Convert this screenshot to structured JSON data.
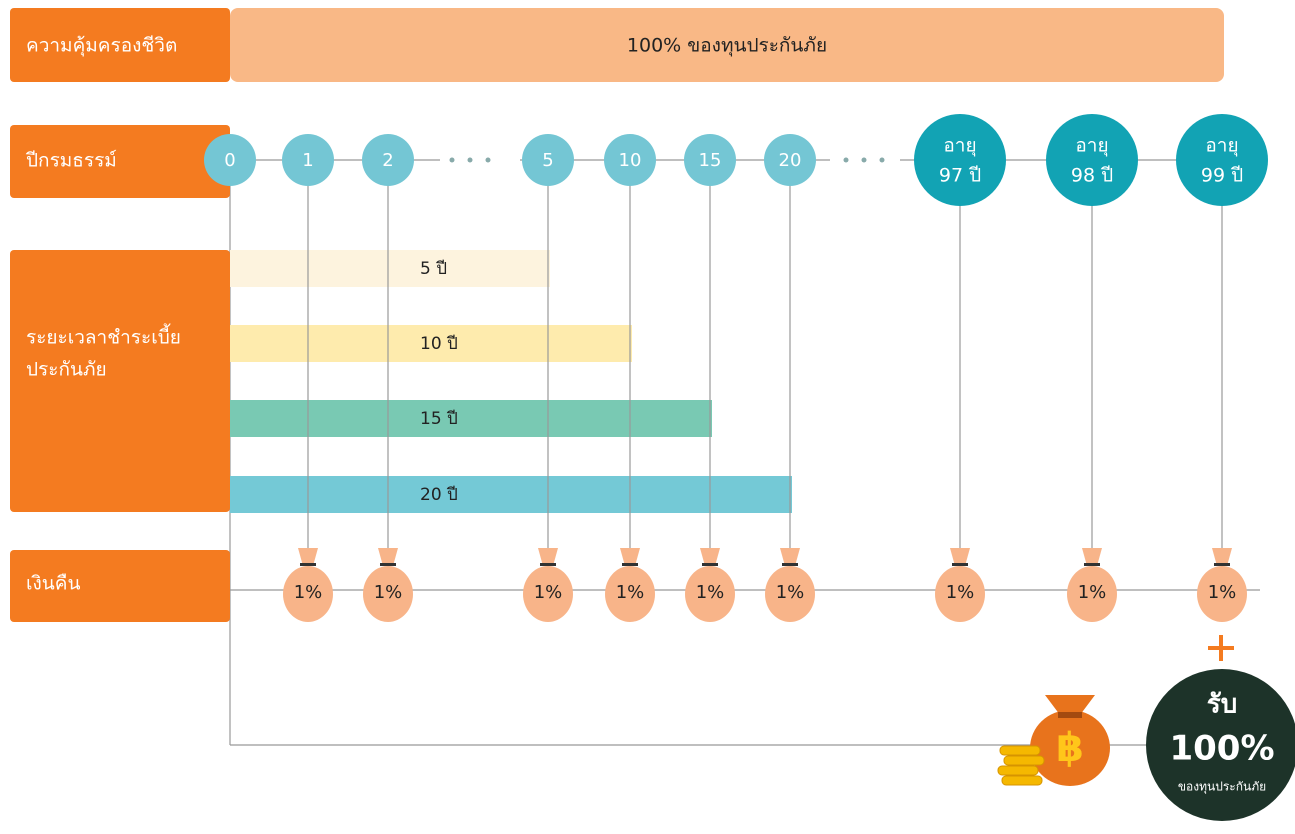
{
  "coverage": {
    "label": "ความคุ้มครองชีวิต",
    "value": "100% ของทุนประกันภัย"
  },
  "policy_years": {
    "label": "ปีกรมธรรม์",
    "points": [
      "0",
      "1",
      "2",
      "5",
      "10",
      "15",
      "20"
    ],
    "ages": [
      {
        "line1": "อายุ",
        "line2": "97 ปี"
      },
      {
        "line1": "อายุ",
        "line2": "98 ปี"
      },
      {
        "line1": "อายุ",
        "line2": "99 ปี"
      }
    ]
  },
  "payment_period": {
    "label_lines": [
      "ระยะเวลาชำระเบี้ย",
      "ประกันภัย"
    ],
    "terms": [
      "5 ปี",
      "10 ปี",
      "15 ปี",
      "20 ปี"
    ]
  },
  "refund": {
    "label": "เงินคืน",
    "bags": [
      "1%",
      "1%",
      "1%",
      "1%",
      "1%",
      "1%",
      "1%",
      "1%",
      "1%"
    ]
  },
  "maturity": {
    "title": "รับ",
    "amount": "100%",
    "note": "ของทุนประกันภัย"
  }
}
